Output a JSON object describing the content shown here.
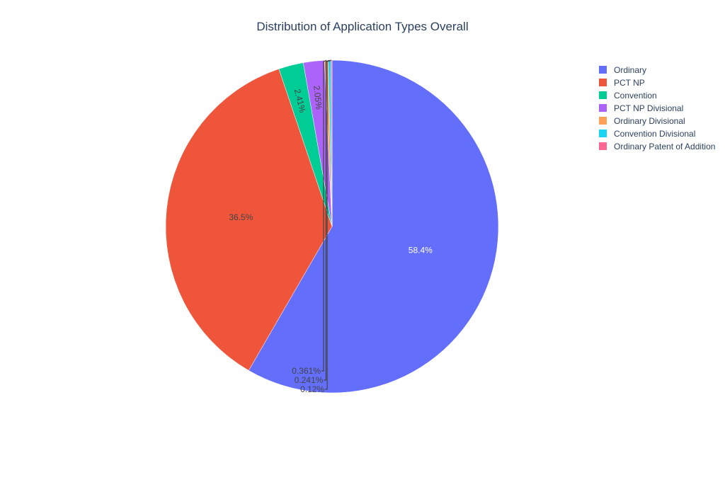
{
  "chart_data": {
    "type": "pie",
    "title": "Distribution of Application Types Overall",
    "legend_position": "top-right",
    "start": "12 o'clock",
    "direction": "clockwise",
    "slices": [
      {
        "label": "Ordinary",
        "value": 58.4,
        "text": "58.4%",
        "color": "#636efa"
      },
      {
        "label": "PCT NP",
        "value": 36.5,
        "text": "36.5%",
        "color": "#ef553b"
      },
      {
        "label": "Convention",
        "value": 2.41,
        "text": "2.41%",
        "color": "#00cc96"
      },
      {
        "label": "PCT NP Divisional",
        "value": 2.05,
        "text": "2.05%",
        "color": "#ab63fa"
      },
      {
        "label": "Ordinary Divisional",
        "value": 0.361,
        "text": "0.361%",
        "color": "#ffa15a"
      },
      {
        "label": "Convention Divisional",
        "value": 0.241,
        "text": "0.241%",
        "color": "#19d3f3"
      },
      {
        "label": "Ordinary Patent of Addition",
        "value": 0.12,
        "text": "0.12%",
        "color": "#ff6692"
      }
    ]
  }
}
